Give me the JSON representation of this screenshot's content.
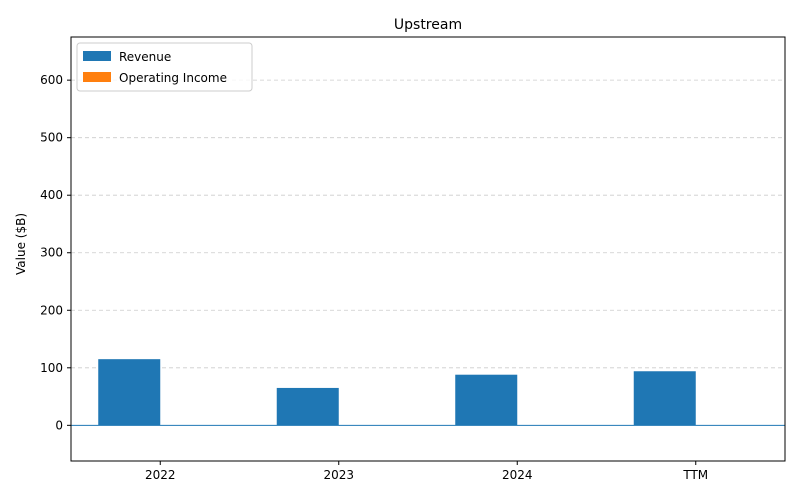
{
  "chart_data": {
    "type": "bar",
    "title": "Upstream",
    "xlabel": "",
    "ylabel": "Value ($B)",
    "categories": [
      "2022",
      "2023",
      "2024",
      "TTM"
    ],
    "series": [
      {
        "name": "Revenue",
        "values": [
          115,
          65,
          88,
          94
        ],
        "color": "#1f77b4"
      },
      {
        "name": "Operating Income",
        "values": [
          0,
          0,
          0,
          0
        ],
        "color": "#ff7f0e"
      }
    ],
    "ylim": [
      -62,
      675
    ],
    "yticks": [
      0,
      100,
      200,
      300,
      400,
      500,
      600
    ],
    "grid": true,
    "legend_position": "top-left"
  }
}
